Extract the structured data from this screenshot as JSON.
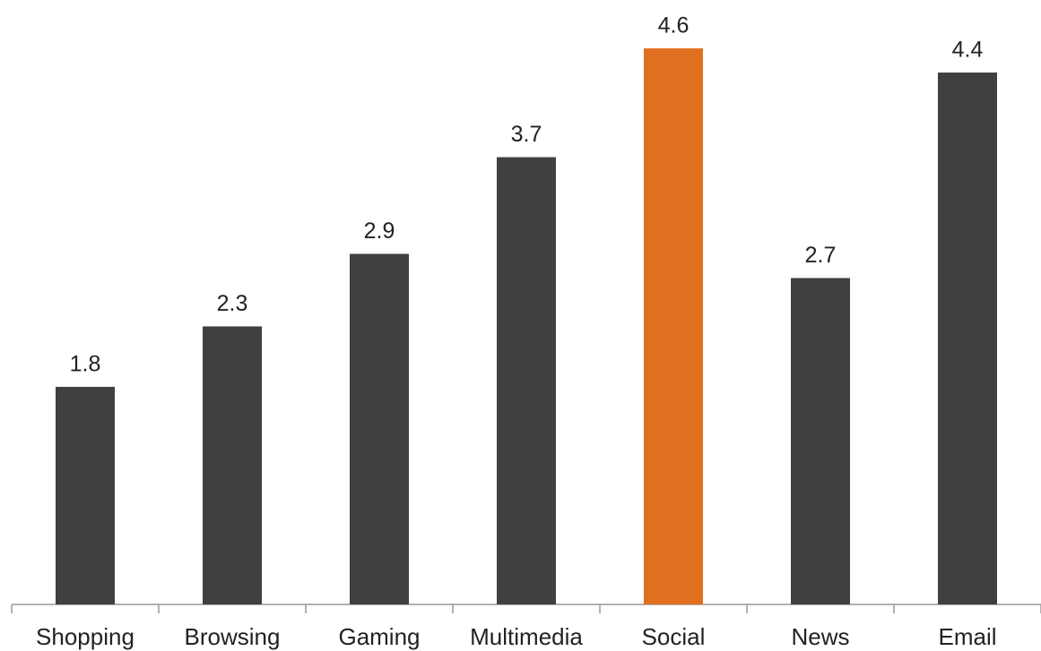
{
  "chart_data": {
    "type": "bar",
    "categories": [
      "Shopping",
      "Browsing",
      "Gaming",
      "Multimedia",
      "Social",
      "News",
      "Email"
    ],
    "values": [
      1.8,
      2.3,
      2.9,
      3.7,
      4.6,
      2.7,
      4.4
    ],
    "colors": [
      "#404040",
      "#404040",
      "#404040",
      "#404040",
      "#e07020",
      "#404040",
      "#404040"
    ],
    "ylim": [
      0,
      5
    ]
  }
}
